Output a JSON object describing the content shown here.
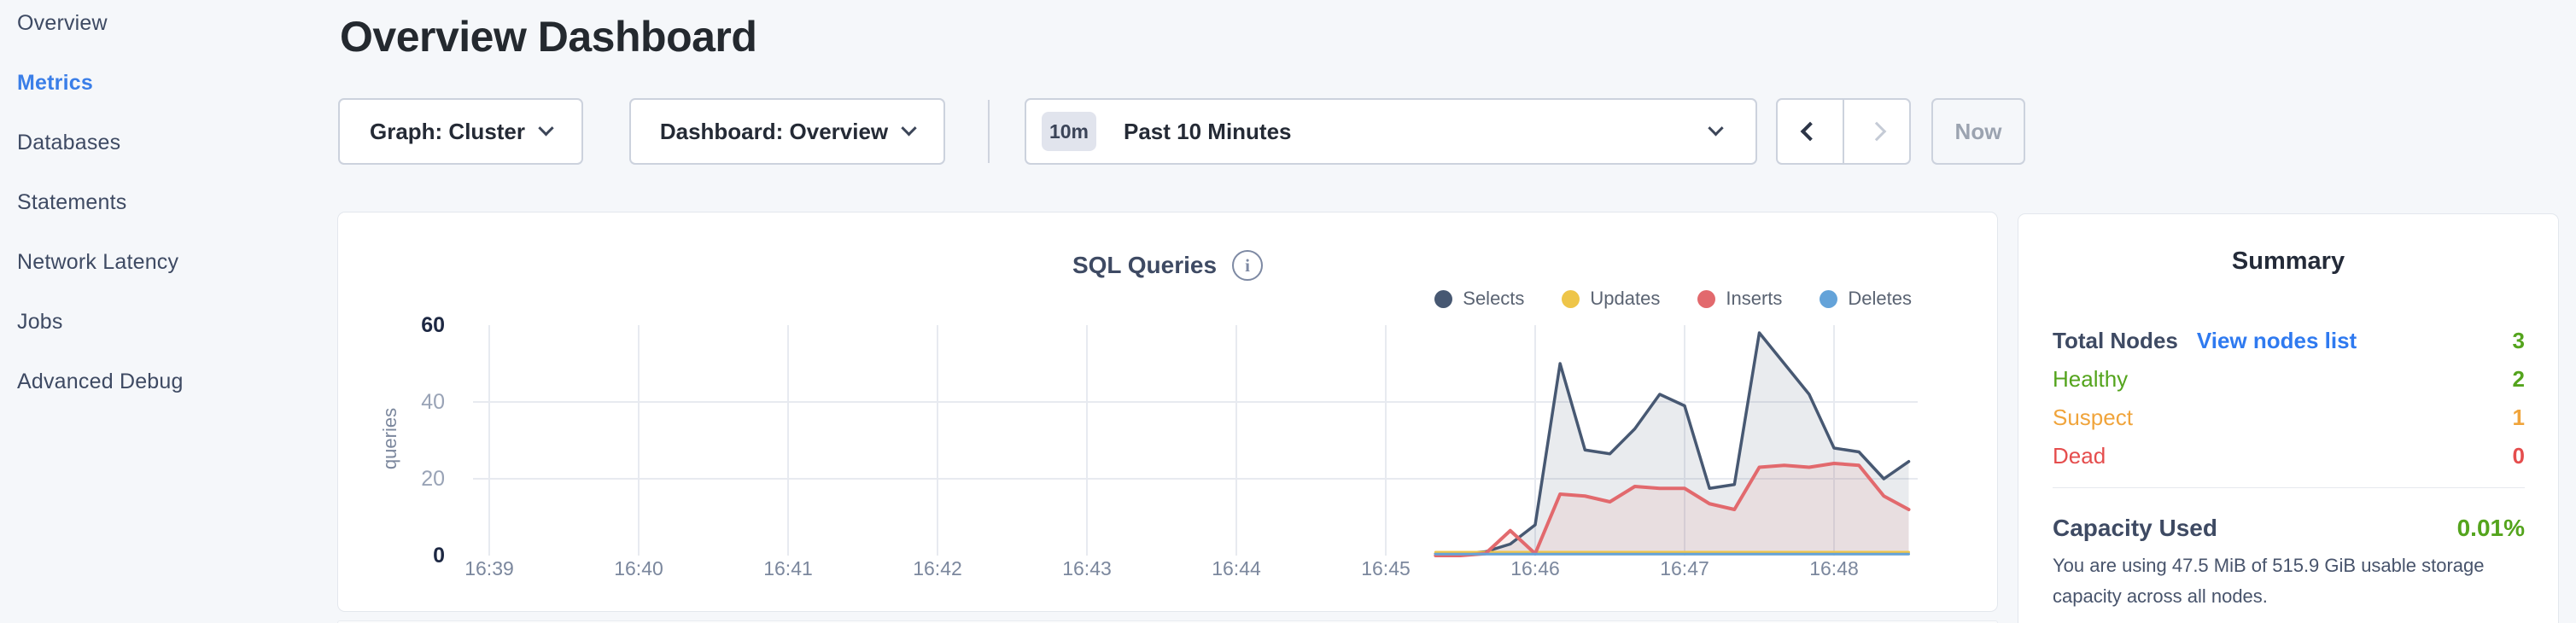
{
  "sidebar": {
    "items": [
      {
        "label": "Overview",
        "active": false
      },
      {
        "label": "Metrics",
        "active": true
      },
      {
        "label": "Databases",
        "active": false
      },
      {
        "label": "Statements",
        "active": false
      },
      {
        "label": "Network Latency",
        "active": false
      },
      {
        "label": "Jobs",
        "active": false
      },
      {
        "label": "Advanced Debug",
        "active": false
      }
    ]
  },
  "header": {
    "title": "Overview Dashboard"
  },
  "toolbar": {
    "graph_dropdown_label": "Graph: Cluster",
    "dashboard_dropdown_label": "Dashboard: Overview",
    "time_picker": {
      "badge": "10m",
      "label": "Past 10 Minutes"
    },
    "now_button_label": "Now",
    "icons": [
      "chevron-down-icon",
      "chevron-left-icon",
      "chevron-right-icon"
    ]
  },
  "chart_card": {
    "title": "SQL Queries",
    "info_icon": "info-circle-icon"
  },
  "chart_data": {
    "type": "area",
    "title": "SQL Queries",
    "ylabel": "queries",
    "ylim": [
      0,
      60
    ],
    "y_ticks": [
      0,
      20,
      40,
      60
    ],
    "x_ticks": [
      "16:39",
      "16:40",
      "16:41",
      "16:42",
      "16:43",
      "16:44",
      "16:45",
      "16:46",
      "16:47",
      "16:48"
    ],
    "grid": true,
    "legend_position": "top-right",
    "first_sample": "16:45:20",
    "sample_interval_seconds": 10,
    "series": [
      {
        "name": "Selects",
        "color": "#475872",
        "fill": true,
        "fill_opacity": 0.12,
        "stroke_width": 3.5,
        "values": [
          0.5,
          0.5,
          1,
          3,
          8,
          50,
          27.5,
          26.5,
          33,
          42,
          39,
          17.5,
          18.5,
          58,
          50,
          42,
          28,
          27,
          20,
          24.5
        ]
      },
      {
        "name": "Updates",
        "color": "#eec549",
        "fill": false,
        "fill_opacity": 0,
        "stroke_width": 3,
        "values": [
          0.9,
          0.9,
          0.9,
          0.9,
          0.9,
          0.9,
          0.9,
          0.9,
          0.9,
          0.9,
          0.9,
          0.9,
          0.9,
          0.9,
          0.9,
          0.9,
          0.9,
          0.9,
          0.9,
          0.9
        ]
      },
      {
        "name": "Inserts",
        "color": "#e2696d",
        "fill": true,
        "fill_opacity": 0.1,
        "stroke_width": 4,
        "values": [
          0,
          0,
          0.5,
          6.5,
          0.5,
          16,
          15.5,
          14,
          18,
          17.5,
          17.5,
          13.5,
          12,
          23,
          23.5,
          23,
          24,
          23.5,
          15.5,
          12
        ]
      },
      {
        "name": "Deletes",
        "color": "#64a3d9",
        "fill": false,
        "fill_opacity": 0,
        "stroke_width": 3,
        "values": [
          0.4,
          0.4,
          0.4,
          0.4,
          0.4,
          0.4,
          0.4,
          0.4,
          0.4,
          0.4,
          0.4,
          0.4,
          0.4,
          0.4,
          0.4,
          0.4,
          0.4,
          0.4,
          0.4,
          0.4
        ]
      }
    ]
  },
  "summary": {
    "title": "Summary",
    "rows": [
      {
        "label": "Total Nodes",
        "link": "View nodes list",
        "value": "3",
        "label_color": "#3e4a63",
        "value_color": "#54a41d",
        "bold": true
      },
      {
        "label": "Healthy",
        "link": null,
        "value": "2",
        "label_color": "#54a41d",
        "value_color": "#54a41d",
        "bold": false
      },
      {
        "label": "Suspect",
        "link": null,
        "value": "1",
        "label_color": "#f0a43b",
        "value_color": "#f0a43b",
        "bold": false
      },
      {
        "label": "Dead",
        "link": null,
        "value": "0",
        "label_color": "#e54d4d",
        "value_color": "#e54d4d",
        "bold": false
      }
    ],
    "capacity": {
      "label": "Capacity Used",
      "value": "0.01%",
      "description": "You are using 47.5 MiB of 515.9 GiB usable storage capacity across all nodes."
    }
  },
  "colors": {
    "page_bg": "#f5f7fa",
    "accent_blue": "#3a7ee8",
    "link_blue": "#2f7af0",
    "healthy_green": "#54a41d",
    "suspect_orange": "#f0a43b",
    "dead_red": "#e54d4d",
    "grid_line": "#e7eaf0",
    "axis_tick_dark": "#1d2843",
    "axis_tick_light": "#99a3b6",
    "axis_label": "#7b879d"
  }
}
